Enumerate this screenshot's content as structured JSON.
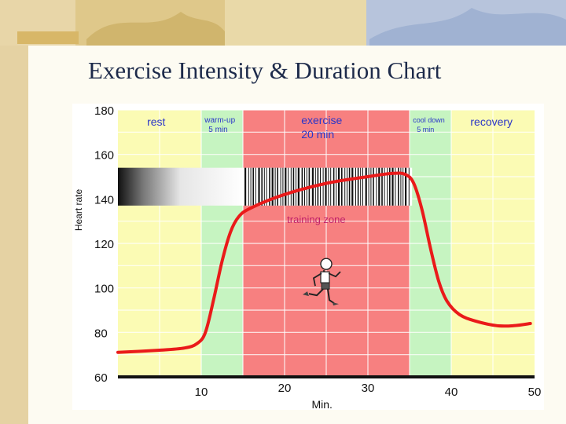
{
  "slide": {
    "title": "Exercise Intensity & Duration Chart"
  },
  "chart_data": {
    "type": "line",
    "title": "Exercise Intensity & Duration Chart",
    "xlabel": "Min.",
    "ylabel": "Heart rate",
    "xlim": [
      0,
      50
    ],
    "ylim": [
      60,
      180
    ],
    "x_ticks": [
      10,
      20,
      30,
      40,
      50
    ],
    "y_ticks": [
      60,
      80,
      100,
      120,
      140,
      160,
      180
    ],
    "grid": true,
    "phases": [
      {
        "label": "rest",
        "start": 0,
        "end": 10,
        "color": "#fbfbb4"
      },
      {
        "label": "warm-up",
        "sublabel": "5 min",
        "start": 10,
        "end": 15,
        "color": "#c6f4c1"
      },
      {
        "label": "exercise",
        "sublabel": "20 min",
        "start": 15,
        "end": 35,
        "color": "#f78080"
      },
      {
        "label": "cool down",
        "sublabel": "5 min",
        "start": 35,
        "end": 40,
        "color": "#c6f4c1"
      },
      {
        "label": "recovery",
        "start": 40,
        "end": 50,
        "color": "#fbfbb4"
      }
    ],
    "training_zone": {
      "label": "training zone",
      "ymin": 137,
      "ymax": 154
    },
    "series": [
      {
        "name": "Heart rate",
        "color": "#ea1a1a",
        "points": [
          [
            0,
            71
          ],
          [
            5,
            72
          ],
          [
            8,
            73
          ],
          [
            9.5,
            75
          ],
          [
            10.5,
            80
          ],
          [
            11.5,
            95
          ],
          [
            12.5,
            112
          ],
          [
            13.5,
            125
          ],
          [
            14.5,
            132
          ],
          [
            16,
            136
          ],
          [
            20,
            142
          ],
          [
            25,
            147
          ],
          [
            30,
            150
          ],
          [
            33,
            151.5
          ],
          [
            34.5,
            151
          ],
          [
            35.5,
            147
          ],
          [
            36.5,
            135
          ],
          [
            37.5,
            118
          ],
          [
            38.5,
            103
          ],
          [
            39.5,
            94
          ],
          [
            41,
            88
          ],
          [
            43,
            85
          ],
          [
            45.5,
            83
          ],
          [
            47.5,
            83
          ],
          [
            49.5,
            84
          ]
        ]
      }
    ]
  }
}
